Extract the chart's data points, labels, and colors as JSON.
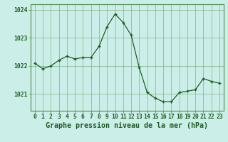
{
  "x": [
    0,
    1,
    2,
    3,
    4,
    5,
    6,
    7,
    8,
    9,
    10,
    11,
    12,
    13,
    14,
    15,
    16,
    17,
    18,
    19,
    20,
    21,
    22,
    23
  ],
  "y": [
    1022.1,
    1021.9,
    1022.0,
    1022.2,
    1022.35,
    1022.25,
    1022.3,
    1022.3,
    1022.7,
    1023.4,
    1023.85,
    1023.55,
    1023.1,
    1021.95,
    1021.05,
    1020.85,
    1020.72,
    1020.72,
    1021.05,
    1021.1,
    1021.15,
    1021.55,
    1021.45,
    1021.38
  ],
  "line_color": "#1f5c1f",
  "marker_color": "#1f5c1f",
  "bg_color": "#cceee8",
  "grid_color": "#7aaa7a",
  "axis_color": "#4a8a4a",
  "axis_label_color": "#1f5c1f",
  "xlabel": "Graphe pression niveau de la mer (hPa)",
  "yticks": [
    1021,
    1022,
    1023,
    1024
  ],
  "ylim": [
    1020.4,
    1024.2
  ],
  "xlim": [
    -0.5,
    23.5
  ],
  "xticks": [
    0,
    1,
    2,
    3,
    4,
    5,
    6,
    7,
    8,
    9,
    10,
    11,
    12,
    13,
    14,
    15,
    16,
    17,
    18,
    19,
    20,
    21,
    22,
    23
  ],
  "tick_fontsize": 5.8,
  "label_fontsize": 7.2
}
